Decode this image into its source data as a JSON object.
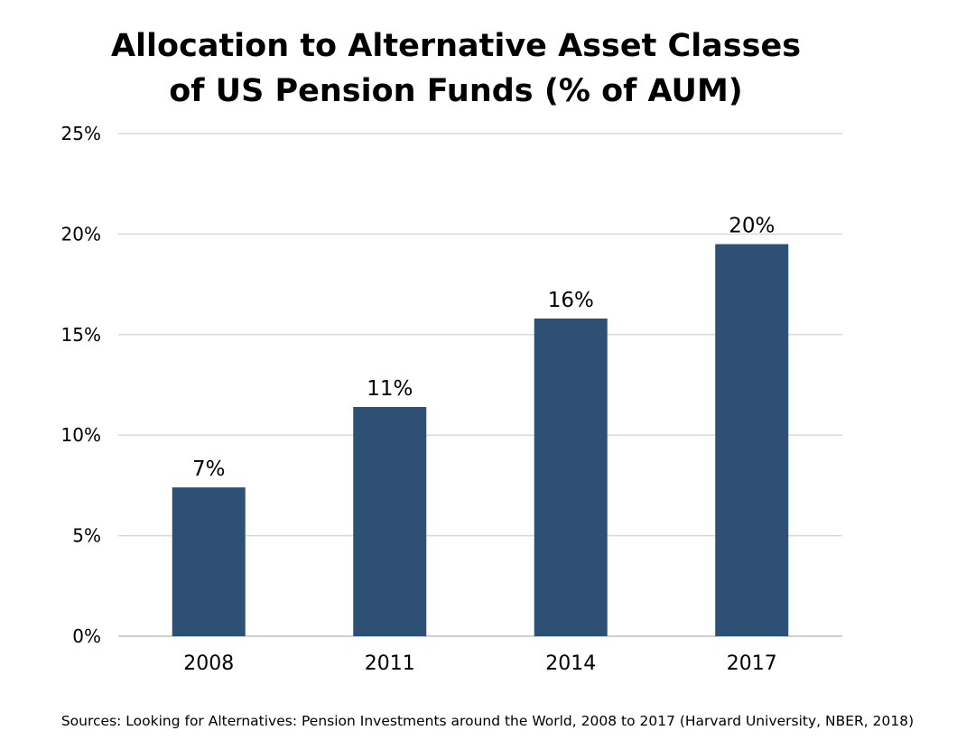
{
  "chart_data": {
    "type": "bar",
    "title_lines": [
      "Allocation to Alternative Asset Classes",
      "of US Pension Funds (% of AUM)"
    ],
    "categories": [
      "2008",
      "2011",
      "2014",
      "2017"
    ],
    "values": [
      7.4,
      11.4,
      15.8,
      19.5
    ],
    "data_labels": [
      "7%",
      "11%",
      "16%",
      "20%"
    ],
    "y_ticks": [
      0,
      5,
      10,
      15,
      20,
      25
    ],
    "y_tick_labels": [
      "0%",
      "5%",
      "10%",
      "15%",
      "20%",
      "25%"
    ],
    "ylim": [
      0,
      25
    ],
    "grid": true,
    "legend": "none",
    "bar_color": "#2e5075"
  },
  "source_note": "Sources: Looking for Alternatives: Pension Investments around the World, 2008 to 2017 (Harvard University, NBER, 2018)"
}
